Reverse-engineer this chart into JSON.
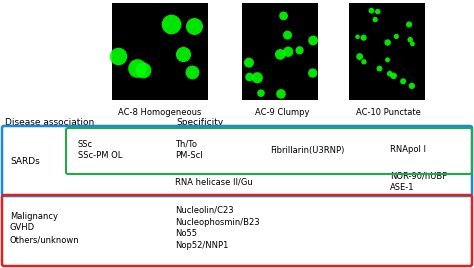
{
  "bg_color": "#ffffff",
  "image_labels": [
    "AC-8 Homogeneous",
    "AC-9 Clumpy",
    "AC-10 Punctate"
  ],
  "header_left": "Disease association",
  "header_center": "Specificity",
  "blue_box_color": "#1a88e0",
  "green_box_color": "#22aa44",
  "red_box_color": "#dd2222",
  "sards_label": "SARDs",
  "green_row1_col1": "SSc\nSSc-PM OL",
  "green_row1_col2": "Th/To\nPM-Scl",
  "green_row1_col3": "Fibrillarin(U3RNP)",
  "green_row1_col4": "RNApol I",
  "blue_row2_col2": "RNA helicase II/Gu",
  "blue_row2_col4": "NOR-90/hUBF\nASE-1",
  "red_col1": "Malignancy\nGVHD\nOthers/unknown",
  "red_col2": "Nucleolin/C23\nNucleophosmin/B23\nNo55\nNop52/NNP1",
  "font_size": 6.0,
  "font_size_header": 6.5
}
